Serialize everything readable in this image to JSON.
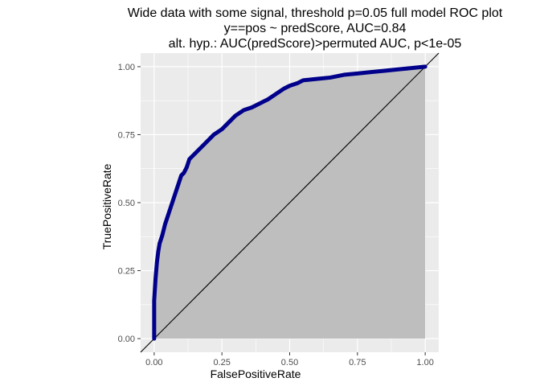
{
  "chart_data": {
    "type": "area",
    "title_lines": [
      "Wide data with some signal, threshold p=0.05 full model ROC plot",
      "y==pos ~ predScore, AUC=0.84",
      "alt. hyp.: AUC(predScore)>permuted AUC, p<1e-05"
    ],
    "xlabel": "FalsePositiveRate",
    "ylabel": "TruePositiveRate",
    "xlim": [
      -0.05,
      1.05
    ],
    "ylim": [
      -0.05,
      1.05
    ],
    "x_ticks": [
      0,
      0.25,
      0.5,
      0.75,
      1
    ],
    "x_tick_labels": [
      "0.00",
      "0.25",
      "0.50",
      "0.75",
      "1.00"
    ],
    "y_ticks": [
      0,
      0.25,
      0.5,
      0.75,
      1
    ],
    "y_tick_labels": [
      "0.00",
      "0.25",
      "0.50",
      "0.75",
      "1.00"
    ],
    "grid": true,
    "series": [
      {
        "x": [
          0,
          0,
          0.005,
          0.01,
          0.015,
          0.02,
          0.03,
          0.04,
          0.05,
          0.06,
          0.07,
          0.08,
          0.09,
          0.1,
          0.11,
          0.12,
          0.13,
          0.14,
          0.15,
          0.17,
          0.19,
          0.2,
          0.22,
          0.25,
          0.28,
          0.3,
          0.33,
          0.36,
          0.38,
          0.42,
          0.45,
          0.48,
          0.5,
          0.53,
          0.55,
          0.6,
          0.65,
          0.7,
          0.75,
          0.8,
          0.85,
          0.9,
          0.95,
          1
        ],
        "y": [
          0,
          0.14,
          0.22,
          0.28,
          0.32,
          0.35,
          0.38,
          0.42,
          0.45,
          0.48,
          0.51,
          0.54,
          0.57,
          0.6,
          0.61,
          0.63,
          0.66,
          0.67,
          0.68,
          0.7,
          0.72,
          0.73,
          0.75,
          0.77,
          0.8,
          0.82,
          0.84,
          0.85,
          0.86,
          0.88,
          0.9,
          0.92,
          0.93,
          0.94,
          0.95,
          0.955,
          0.96,
          0.97,
          0.975,
          0.98,
          0.985,
          0.99,
          0.995,
          1
        ]
      }
    ],
    "reference_line": {
      "from": [
        0,
        0
      ],
      "to": [
        1,
        1
      ]
    },
    "colors": {
      "curve": "#00008b",
      "fill": "#bebebe",
      "panel": "#ebebeb",
      "grid": "#ffffff",
      "reference": "#000000"
    }
  }
}
